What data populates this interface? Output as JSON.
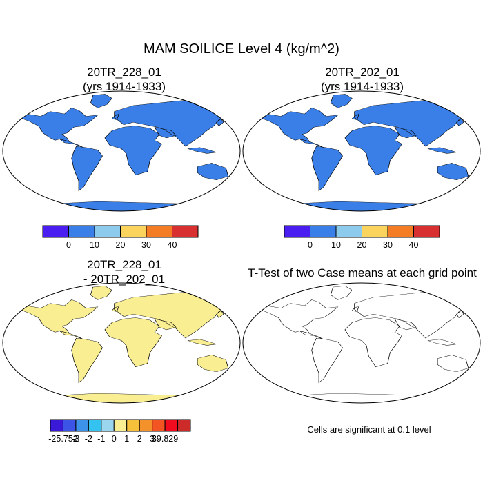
{
  "title": "MAM SOILICE Level 4 (kg/m^2)",
  "panels": [
    {
      "id": "case1",
      "title_line1": "20TR_228_01",
      "title_line2": "(yrs 1914-1933)"
    },
    {
      "id": "case2",
      "title_line1": "20TR_202_01",
      "title_line2": "(yrs 1914-1933)"
    },
    {
      "id": "diff",
      "title_line1": "20TR_228_01",
      "title_line2": "- 20TR_202_01"
    },
    {
      "id": "ttest",
      "title_line1": "T-Test of two Case means at each grid point"
    }
  ],
  "colorbar_abs": {
    "labels": [
      "0",
      "10",
      "20",
      "30",
      "40"
    ],
    "colors": [
      "#4a1ef0",
      "#3a7fe8",
      "#8ccbeb",
      "#fad45c",
      "#f47c24",
      "#d83030"
    ]
  },
  "colorbar_diff": {
    "labels": [
      "-25.752",
      "-3",
      "-2",
      "-1",
      "0",
      "1",
      "2",
      "3",
      "39.829"
    ],
    "colors": [
      "#3a1ad8",
      "#3d55e6",
      "#3d92ea",
      "#34c2f0",
      "#9ad6ee",
      "#f9ef92",
      "#f6c03a",
      "#f3912a",
      "#f25422",
      "#f00b1e",
      "#cd2a2a"
    ]
  },
  "footnote": "Cells are significant at 0.1 level",
  "colors": {
    "ocean": "#ffffff",
    "land_base": "#3a7fe8",
    "diff_base": "#f9ef92",
    "significant": "#e80000"
  }
}
